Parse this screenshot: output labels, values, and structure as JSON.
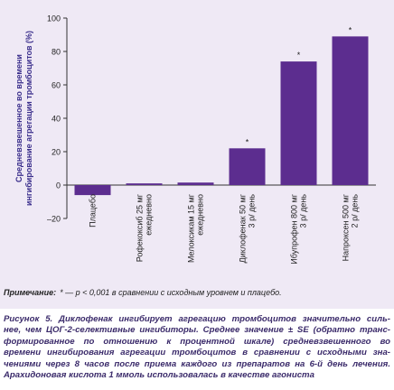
{
  "chart_data": {
    "type": "bar",
    "y_label": [
      "Средневзвешенное во времени",
      "ингибирование агрегации тромбоцитов (%)"
    ],
    "categories": [
      [
        "Плацебо"
      ],
      [
        "Рофекоксиб 25 мг",
        "ежедневно"
      ],
      [
        "Мелоксикам 15 мг",
        "ежедневно"
      ],
      [
        "Диклофенак 50 мг",
        "3 р/ день"
      ],
      [
        "Ибупрофен 800 мг",
        "3 р/ день"
      ],
      [
        "Напроксен 500 мг",
        "2 р/ день"
      ]
    ],
    "values": [
      -6,
      1,
      1.5,
      22,
      74,
      89
    ],
    "significant": [
      false,
      false,
      false,
      true,
      true,
      true
    ],
    "significance_mark": "*",
    "color": "#5c2d8f",
    "ylim": [
      -20,
      100
    ],
    "yticks": [
      {
        "value": -20,
        "label": "–20"
      },
      0,
      20,
      40,
      60,
      80,
      100
    ],
    "note_label": "Примечание:",
    "note": "* — p < 0,001 в сравнении с исходным уровнем и плацебо."
  },
  "caption": [
    "Рисунок 5. Диклофенак ингибирует агрегацию тромбоцитов значительно силь-",
    "нее, чем ЦОГ-2-селективные ингибиторы. Среднее значение ± SE (обратно транс-",
    "формированное по отношению к процентной шкале) средневзвешенного во",
    "времени ингибирования агрегации тромбоцитов в сравнении с исходными зна-",
    "чениями через 8 часов после приема каждого из препаратов на 6-й день лечения.",
    "Арахидоновая кислота 1 ммоль использовалась в качестве агониста"
  ]
}
